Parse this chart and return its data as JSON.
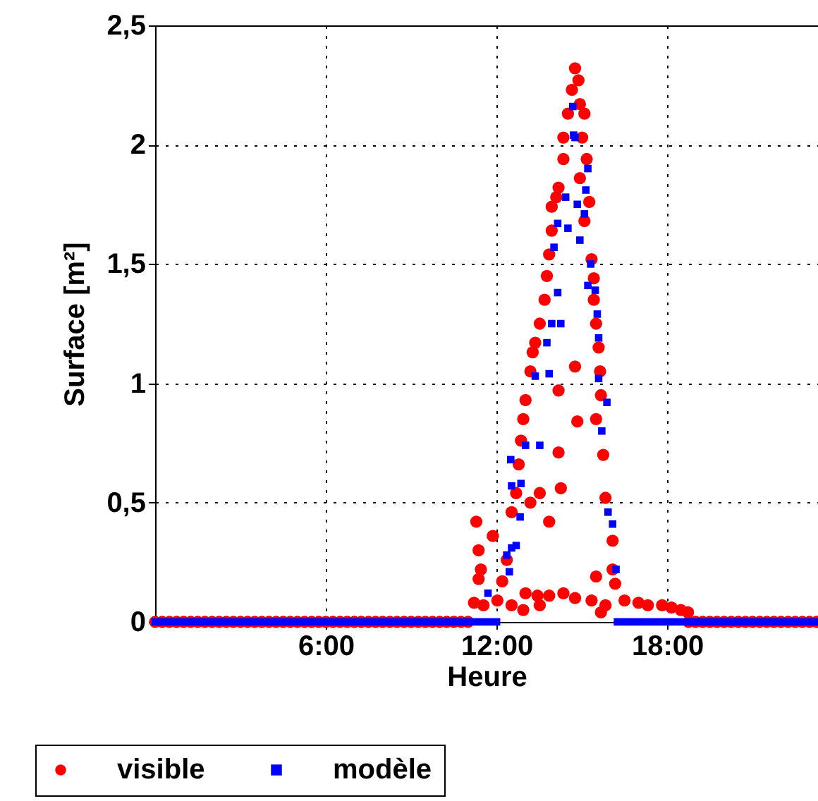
{
  "chart_data": {
    "type": "scatter",
    "xlabel": "Heure",
    "ylabel": "Surface [m²]",
    "xlim": [
      0,
      23.3
    ],
    "ylim": [
      0,
      2.5
    ],
    "xticks": [
      {
        "value": 6,
        "label": "6:00"
      },
      {
        "value": 12,
        "label": "12:00"
      },
      {
        "value": 18,
        "label": "18:00"
      }
    ],
    "yticks": [
      0,
      {
        "value": 0.5,
        "label": "0,5"
      },
      1,
      {
        "value": 1.5,
        "label": "1,5"
      },
      2,
      {
        "value": 2.5,
        "label": "2,5"
      }
    ],
    "grid": true,
    "legend": "bottom",
    "series": [
      {
        "name": "visible",
        "color": "#ff0000",
        "marker": "circle",
        "x": [
          0,
          0.25,
          0.5,
          0.75,
          1,
          1.25,
          1.5,
          1.75,
          2,
          2.25,
          2.5,
          2.75,
          3,
          3.25,
          3.5,
          3.75,
          4,
          4.25,
          4.5,
          4.75,
          5,
          5.25,
          5.5,
          5.75,
          6,
          6.25,
          6.5,
          6.75,
          7,
          7.25,
          7.5,
          7.75,
          8,
          8.25,
          8.5,
          8.75,
          9,
          9.25,
          9.5,
          9.75,
          10,
          10.25,
          10.5,
          10.75,
          11,
          18.75,
          19,
          19.25,
          19.5,
          19.75,
          20,
          20.25,
          20.5,
          20.75,
          21,
          21.25,
          21.5,
          21.75,
          22,
          22.25,
          22.5,
          22.75,
          23,
          23.25,
          11.29,
          11.37,
          11.45,
          11.37,
          11.21,
          11.54,
          11.87,
          12.03,
          12.2,
          12.36,
          12.53,
          12.69,
          12.78,
          12.86,
          12.94,
          13.02,
          13.19,
          13.27,
          13.36,
          13.52,
          13.69,
          13.77,
          13.85,
          13.94,
          13.94,
          14.1,
          14.18,
          14.35,
          14.35,
          14.51,
          14.65,
          14.76,
          14.88,
          14.93,
          15.01,
          15.09,
          15.17,
          14.93,
          15.26,
          15.09,
          15.34,
          15.42,
          15.42,
          15.5,
          15.59,
          15.64,
          15.67,
          15.5,
          15.75,
          15.83,
          16.08,
          16.08,
          16.17,
          15.5,
          14.76,
          14.18,
          14.84,
          14.18,
          14.26,
          13.52,
          13.19,
          13.85,
          13.44,
          13.02,
          12.53,
          13.85,
          14.35,
          14.76,
          15.34,
          15.83,
          16.5,
          16.99,
          17.32,
          17.82,
          18.15,
          18.48,
          18.73,
          12.94,
          13.52,
          15.67
        ],
        "values": [
          0,
          0,
          0,
          0,
          0,
          0,
          0,
          0,
          0,
          0,
          0,
          0,
          0,
          0,
          0,
          0,
          0,
          0,
          0,
          0,
          0,
          0,
          0,
          0,
          0,
          0,
          0,
          0,
          0,
          0,
          0,
          0,
          0,
          0,
          0,
          0,
          0,
          0,
          0,
          0,
          0,
          0,
          0,
          0,
          0,
          0,
          0,
          0,
          0,
          0,
          0,
          0,
          0,
          0,
          0,
          0,
          0,
          0,
          0,
          0,
          0,
          0,
          0,
          0,
          0.42,
          0.3,
          0.22,
          0.18,
          0.08,
          0.07,
          0.36,
          0.09,
          0.17,
          0.26,
          0.46,
          0.54,
          0.66,
          0.76,
          0.85,
          0.93,
          1.05,
          1.13,
          1.17,
          1.25,
          1.35,
          1.45,
          1.54,
          1.64,
          1.74,
          1.78,
          1.82,
          1.94,
          2.03,
          2.13,
          2.23,
          2.32,
          2.27,
          2.17,
          2.03,
          2.13,
          1.94,
          1.86,
          1.76,
          1.68,
          1.52,
          1.44,
          1.35,
          1.25,
          1.15,
          1.05,
          0.95,
          0.85,
          0.7,
          0.52,
          0.34,
          0.22,
          0.16,
          0.19,
          1.07,
          0.97,
          0.84,
          0.71,
          0.56,
          0.54,
          0.5,
          0.42,
          0.11,
          0.12,
          0.07,
          0.11,
          0.12,
          0.1,
          0.09,
          0.07,
          0.09,
          0.08,
          0.07,
          0.07,
          0.06,
          0.05,
          0.04,
          0.05,
          0.07,
          0.04
        ]
      },
      {
        "name": "modèle",
        "color": "#0000ff",
        "marker": "square",
        "x": [
          0,
          0.25,
          0.5,
          0.75,
          1,
          1.25,
          1.5,
          1.75,
          2,
          2.25,
          2.5,
          2.75,
          3,
          3.25,
          3.5,
          3.75,
          4,
          4.25,
          4.5,
          4.75,
          5,
          5.25,
          5.5,
          5.75,
          6,
          6.25,
          6.5,
          6.75,
          7,
          7.25,
          7.5,
          7.75,
          8,
          8.25,
          8.5,
          8.75,
          9,
          9.25,
          9.5,
          9.75,
          10,
          10.25,
          10.5,
          10.75,
          11,
          11.25,
          11.5,
          11.75,
          12,
          16.25,
          16.5,
          16.75,
          17,
          17.25,
          17.5,
          17.75,
          18,
          18.25,
          18.5,
          18.75,
          19,
          19.25,
          19.5,
          19.75,
          20,
          20.25,
          20.5,
          20.75,
          21,
          21.25,
          21.5,
          21.75,
          22,
          22.25,
          22.5,
          22.75,
          23,
          23.25,
          11.7,
          12.45,
          12.36,
          12.53,
          12.69,
          12.83,
          12.53,
          12.86,
          12.5,
          13.02,
          13.52,
          13.36,
          13.85,
          13.77,
          13.94,
          14.26,
          14.15,
          14.02,
          14.15,
          14.51,
          14.43,
          14.84,
          15.09,
          14.93,
          15.14,
          15.21,
          14.68,
          14.71,
          14.76,
          15.31,
          15.21,
          15.47,
          15.54,
          15.59,
          15.59,
          15.88,
          15.7,
          15.92,
          16.08,
          16.2
        ],
        "values": [
          0,
          0,
          0,
          0,
          0,
          0,
          0,
          0,
          0,
          0,
          0,
          0,
          0,
          0,
          0,
          0,
          0,
          0,
          0,
          0,
          0,
          0,
          0,
          0,
          0,
          0,
          0,
          0,
          0,
          0,
          0,
          0,
          0,
          0,
          0,
          0,
          0,
          0,
          0,
          0,
          0,
          0,
          0,
          0,
          0,
          0,
          0,
          0,
          0,
          0,
          0,
          0,
          0,
          0,
          0,
          0,
          0,
          0,
          0,
          0,
          0,
          0,
          0,
          0,
          0,
          0,
          0,
          0,
          0,
          0,
          0,
          0,
          0,
          0,
          0,
          0,
          0,
          0,
          0.12,
          0.21,
          0.28,
          0.31,
          0.32,
          0.44,
          0.57,
          0.58,
          0.68,
          0.74,
          0.74,
          1.03,
          1.04,
          1.17,
          1.25,
          1.25,
          1.38,
          1.57,
          1.67,
          1.65,
          1.78,
          1.75,
          1.71,
          1.6,
          1.81,
          1.9,
          2.16,
          2.04,
          2.03,
          1.5,
          1.41,
          1.39,
          1.29,
          1.19,
          1.02,
          0.92,
          0.8,
          0.46,
          0.41,
          0.22
        ]
      }
    ]
  }
}
